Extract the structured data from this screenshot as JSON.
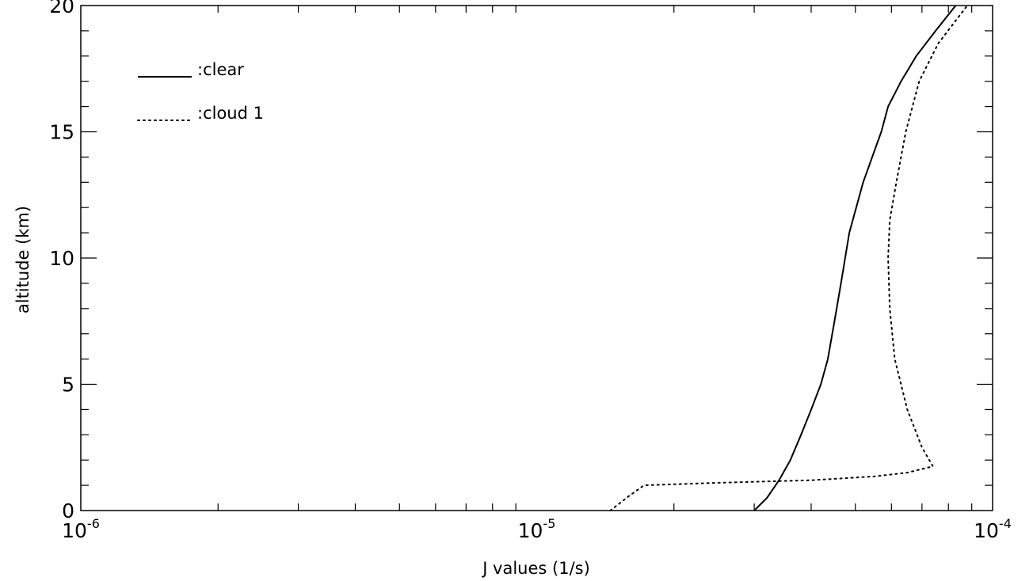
{
  "chart_data": {
    "type": "line",
    "xlabel": "J values (1/s)",
    "ylabel": "altitude (km)",
    "xscale": "log",
    "xlim": [
      1e-06,
      0.0001
    ],
    "ylim": [
      0,
      20
    ],
    "x_tick_labels": [
      {
        "base": "10",
        "exp": "-6"
      },
      {
        "base": "10",
        "exp": "-5"
      },
      {
        "base": "10",
        "exp": "-4"
      }
    ],
    "y_ticks": [
      0,
      5,
      10,
      15,
      20
    ],
    "grid": false,
    "legend_position": "top-left",
    "series": [
      {
        "name": ":clear",
        "style": "solid",
        "points": [
          [
            3e-05,
            0
          ],
          [
            3.2e-05,
            0.5
          ],
          [
            3.4e-05,
            1.2
          ],
          [
            3.6e-05,
            2
          ],
          [
            3.8e-05,
            3
          ],
          [
            4e-05,
            4
          ],
          [
            4.2e-05,
            5
          ],
          [
            4.35e-05,
            6
          ],
          [
            4.5e-05,
            7.5
          ],
          [
            4.65e-05,
            9
          ],
          [
            4.85e-05,
            11
          ],
          [
            5.2e-05,
            13
          ],
          [
            5.7e-05,
            15
          ],
          [
            5.9e-05,
            16
          ],
          [
            6.3e-05,
            17
          ],
          [
            6.8e-05,
            18
          ],
          [
            7.5e-05,
            19
          ],
          [
            8.3e-05,
            20
          ]
        ]
      },
      {
        "name": ":cloud 1",
        "style": "dotted",
        "points": [
          [
            1.45e-05,
            0
          ],
          [
            1.6e-05,
            0.6
          ],
          [
            1.72e-05,
            1.0
          ],
          [
            2.5e-05,
            1.1
          ],
          [
            4e-05,
            1.2
          ],
          [
            5.5e-05,
            1.35
          ],
          [
            6.5e-05,
            1.5
          ],
          [
            7.4e-05,
            1.75
          ],
          [
            7e-05,
            2.5
          ],
          [
            6.5e-05,
            4
          ],
          [
            6.1e-05,
            6
          ],
          [
            5.95e-05,
            8
          ],
          [
            5.9e-05,
            10
          ],
          [
            5.95e-05,
            11.5
          ],
          [
            6.15e-05,
            13
          ],
          [
            6.45e-05,
            15
          ],
          [
            6.9e-05,
            17
          ],
          [
            7.6e-05,
            18.5
          ],
          [
            8.8e-05,
            20
          ]
        ]
      }
    ]
  }
}
